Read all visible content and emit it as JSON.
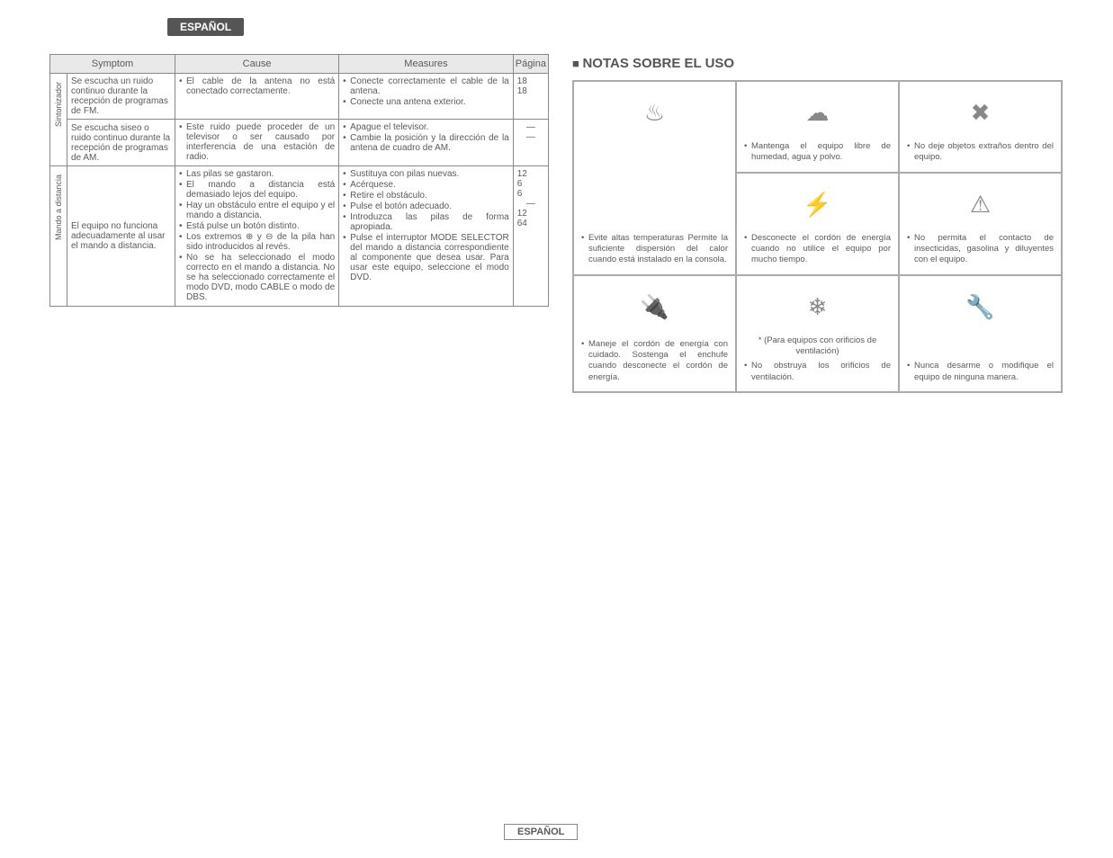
{
  "badges": {
    "top": "ESPAÑOL",
    "bottom": "ESPAÑOL"
  },
  "table": {
    "headers": {
      "symptom": "Symptom",
      "cause": "Cause",
      "measures": "Measures",
      "page": "Página"
    },
    "groups": [
      {
        "label": "Sintonizador",
        "rows": [
          {
            "symptom": "Se escucha un ruido continuo durante la recepción de programas de FM.",
            "causes": [
              "El cable de la antena no está conectado correctamente."
            ],
            "measures": [
              "Conecte correctamente el cable de la antena.",
              "Conecte una antena exterior."
            ],
            "pages": [
              "18",
              "18"
            ]
          },
          {
            "symptom": "Se escucha siseo o ruido continuo durante la recepción de programas de AM.",
            "causes": [
              "Este ruido puede proceder de un televisor o ser causado por interferencia de una estación de radio."
            ],
            "measures": [
              "Apague el televisor.",
              "Cambie la posición y la dirección de la antena de cuadro de AM."
            ],
            "pages": [
              "—",
              "—"
            ]
          }
        ]
      },
      {
        "label": "Mando a distancia",
        "rows": [
          {
            "symptom": "El equipo no funciona adecuadamente al usar el mando a distancia.",
            "causes": [
              "Las pilas se gastaron.",
              "El mando a distancia está demasiado lejos del equipo.",
              "Hay un obstáculo entre el equipo y el mando a distancia.",
              "Está pulse un botón distinto.",
              "Los extremos ⊕ y ⊖ de la pila han sido introducidos al revés.",
              "No se ha seleccionado el modo correcto en el mando a distancia. No se ha seleccionado correctamente el modo DVD, modo CABLE o modo de DBS."
            ],
            "measures": [
              "Sustituya con pilas nuevas.",
              "Acérquese.",
              "Retire el obstáculo.",
              "Pulse el botón adecuado.",
              "Introduzca las pilas de forma apropiada.",
              "Pulse el interruptor MODE SELECTOR del mando a distancia correspondiente al componente que desea usar. Para usar este equipo, seleccione el modo DVD."
            ],
            "pages": [
              "12",
              "6",
              "6",
              "—",
              "12",
              "64"
            ]
          }
        ]
      }
    ]
  },
  "notes": {
    "title": "NOTAS SOBRE EL USO",
    "cells": {
      "a": "Evite altas temperaturas Permite la suficiente dispersión del calor cuando está instalado en la consola.",
      "b": "Mantenga el equipo libre de humedad, agua y polvo.",
      "c": "No deje objetos extraños dentro del equipo.",
      "d": "Desconecte el cordón de energía cuando no utilice el equipo por mucho tiempo.",
      "e": "No permita el contacto de insecticidas, gasolina y diluyentes con el equipo.",
      "f": "Maneje el cordón de energía con cuidado. Sostenga el enchufe cuando desconecte el cordón de energía.",
      "g_pre": "* (Para equipos con orificios de ventilación)",
      "g": "No obstruya los orificios de ventilación.",
      "h": "Nunca desarme o modifique el equipo de ninguna manera."
    },
    "icons": {
      "a": "♨",
      "b": "☁",
      "c": "✖",
      "d": "⚡",
      "e": "⚠",
      "f": "🔌",
      "g": "❄",
      "h": "🔧"
    }
  },
  "colors": {
    "page_bg": "#ffffff",
    "text": "#5a5a5a",
    "border": "#888888",
    "header_bg": "#e9e9e9",
    "badge_bg": "#555555",
    "badge_text": "#ffffff"
  }
}
